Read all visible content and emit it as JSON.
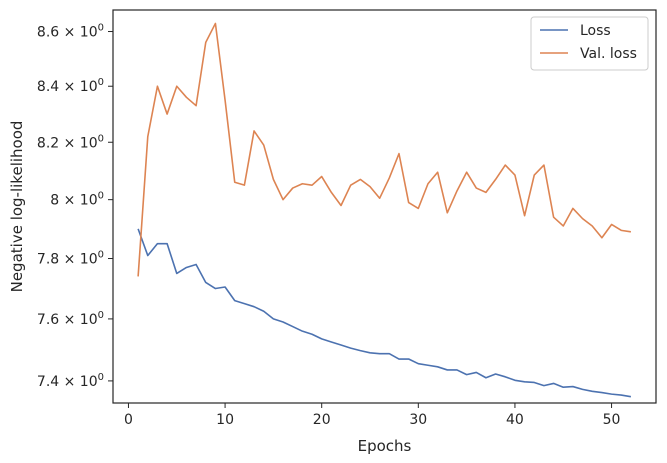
{
  "chart_data": {
    "type": "line",
    "title": "",
    "xlabel": "Epochs",
    "ylabel": "Negative log-likelihood",
    "yscale": "log",
    "xlim": [
      -1.6,
      54.6
    ],
    "ylim": [
      7.33,
      8.68
    ],
    "x_ticks": [
      0,
      10,
      20,
      30,
      40,
      50
    ],
    "y_ticks": [
      {
        "value": 7.4,
        "label_mantissa": "7.4",
        "label_mid": " × 10",
        "label_exp": "0"
      },
      {
        "value": 7.6,
        "label_mantissa": "7.6",
        "label_mid": " × 10",
        "label_exp": "0"
      },
      {
        "value": 7.8,
        "label_mantissa": "7.8",
        "label_mid": " × 10",
        "label_exp": "0"
      },
      {
        "value": 8.0,
        "label_mantissa": "8",
        "label_mid": " × 10",
        "label_exp": "0"
      },
      {
        "value": 8.2,
        "label_mantissa": "8.2",
        "label_mid": " × 10",
        "label_exp": "0"
      },
      {
        "value": 8.4,
        "label_mantissa": "8.4",
        "label_mid": " × 10",
        "label_exp": "0"
      },
      {
        "value": 8.6,
        "label_mantissa": "8.6",
        "label_mid": " × 10",
        "label_exp": "0"
      }
    ],
    "grid": false,
    "legend_position": "top-right",
    "x": [
      1,
      2,
      3,
      4,
      5,
      6,
      7,
      8,
      9,
      10,
      11,
      12,
      13,
      14,
      15,
      16,
      17,
      18,
      19,
      20,
      21,
      22,
      23,
      24,
      25,
      26,
      27,
      28,
      29,
      30,
      31,
      32,
      33,
      34,
      35,
      36,
      37,
      38,
      39,
      40,
      41,
      42,
      43,
      44,
      45,
      46,
      47,
      48,
      49,
      50,
      51,
      52
    ],
    "series": [
      {
        "name": "Loss",
        "color": "#4c72b0",
        "values": [
          7.9,
          7.81,
          7.85,
          7.85,
          7.75,
          7.77,
          7.78,
          7.72,
          7.7,
          7.705,
          7.66,
          7.65,
          7.64,
          7.625,
          7.6,
          7.59,
          7.575,
          7.56,
          7.55,
          7.535,
          7.525,
          7.515,
          7.505,
          7.497,
          7.49,
          7.487,
          7.487,
          7.47,
          7.47,
          7.455,
          7.45,
          7.445,
          7.435,
          7.435,
          7.42,
          7.427,
          7.41,
          7.422,
          7.413,
          7.402,
          7.397,
          7.395,
          7.385,
          7.392,
          7.38,
          7.382,
          7.373,
          7.367,
          7.363,
          7.358,
          7.355,
          7.35
        ]
      },
      {
        "name": "Val. loss",
        "color": "#dd8452",
        "values": [
          7.74,
          8.22,
          8.4,
          8.3,
          8.4,
          8.36,
          8.33,
          8.56,
          8.63,
          8.35,
          8.06,
          8.05,
          8.24,
          8.19,
          8.07,
          8.0,
          8.04,
          8.055,
          8.05,
          8.08,
          8.025,
          7.98,
          8.05,
          8.07,
          8.045,
          8.005,
          8.075,
          8.16,
          7.99,
          7.97,
          8.055,
          8.095,
          7.955,
          8.03,
          8.095,
          8.04,
          8.025,
          8.07,
          8.12,
          8.085,
          7.945,
          8.085,
          8.12,
          7.94,
          7.91,
          7.97,
          7.935,
          7.91,
          7.87,
          7.915,
          7.895,
          7.89
        ]
      }
    ]
  }
}
